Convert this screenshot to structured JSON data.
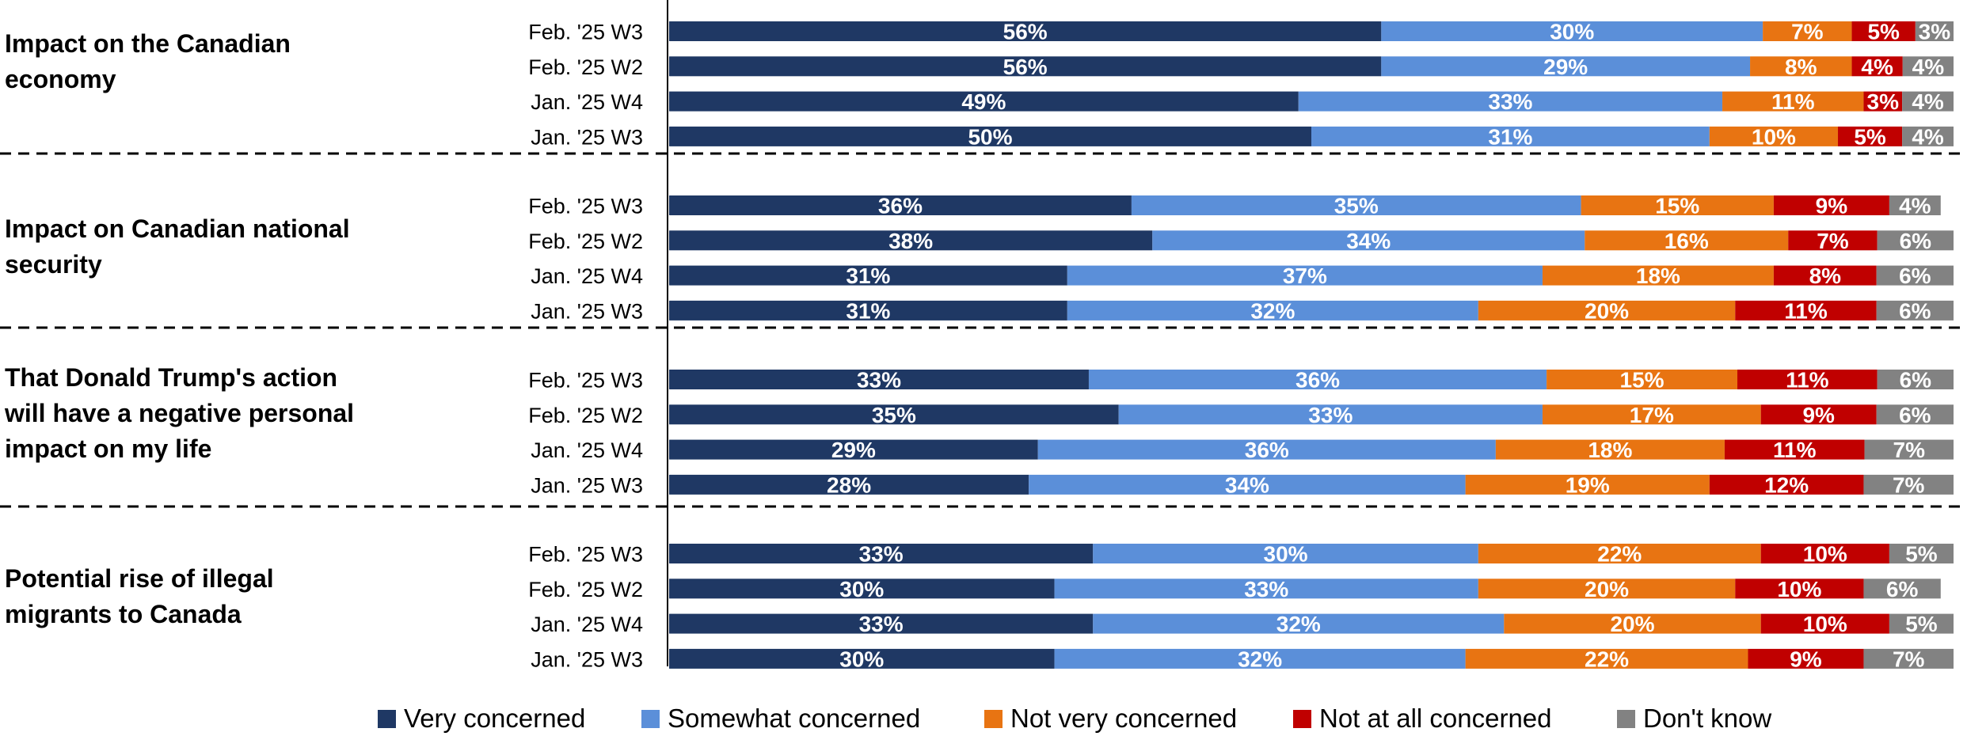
{
  "chart_data": {
    "type": "bar",
    "orientation": "horizontal",
    "stacked": true,
    "xlim": [
      0,
      100
    ],
    "grid": false,
    "legend_position": "bottom",
    "series": [
      {
        "name": "Very concerned",
        "color": "#1F3864"
      },
      {
        "name": "Somewhat concerned",
        "color": "#5B8FD9"
      },
      {
        "name": "Not very concerned",
        "color": "#E87412"
      },
      {
        "name": "Not at all concerned",
        "color": "#C00000"
      },
      {
        "name": "Don't know",
        "color": "#828282"
      }
    ],
    "groups": [
      {
        "label": "Impact on the Canadian economy",
        "rows": [
          {
            "label": "Feb. '25 W3",
            "values": [
              56,
              30,
              7,
              5,
              3
            ],
            "texts": [
              "56%",
              "30%",
              "7%",
              "5%",
              "3%"
            ]
          },
          {
            "label": "Feb. '25 W2",
            "values": [
              56,
              29,
              8,
              4,
              4
            ],
            "texts": [
              "56%",
              "29%",
              "8%",
              "4%",
              "4%"
            ]
          },
          {
            "label": "Jan. '25 W4",
            "values": [
              49,
              33,
              11,
              3,
              4
            ],
            "texts": [
              "49%",
              "33%",
              "11%",
              "3%",
              "4%"
            ]
          },
          {
            "label": "Jan. '25 W3",
            "values": [
              50,
              31,
              10,
              5,
              4
            ],
            "texts": [
              "50%",
              "31%",
              "10%",
              "5%",
              "4%"
            ]
          }
        ]
      },
      {
        "label": "Impact on Canadian national security",
        "rows": [
          {
            "label": "Feb. '25 W3",
            "values": [
              36,
              35,
              15,
              9,
              4
            ],
            "texts": [
              "36%",
              "35%",
              "15%",
              "9%",
              "4%"
            ]
          },
          {
            "label": "Feb. '25 W2",
            "values": [
              38,
              34,
              16,
              7,
              6
            ],
            "texts": [
              "38%",
              "34%",
              "16%",
              "7%",
              "6%"
            ]
          },
          {
            "label": "Jan. '25 W4",
            "values": [
              31,
              37,
              18,
              8,
              6
            ],
            "texts": [
              "31%",
              "37%",
              "18%",
              "8%",
              "6%"
            ]
          },
          {
            "label": "Jan. '25 W3",
            "values": [
              31,
              32,
              20,
              11,
              6
            ],
            "texts": [
              "31%",
              "32%",
              "20%",
              "11%",
              "6%"
            ]
          }
        ]
      },
      {
        "label": "That Donald Trump's action will have a negative personal impact on my life",
        "rows": [
          {
            "label": "Feb. '25 W3",
            "values": [
              33,
              36,
              15,
              11,
              6
            ],
            "texts": [
              "33%",
              "36%",
              "15%",
              "11%",
              "6%"
            ]
          },
          {
            "label": "Feb. '25 W2",
            "values": [
              35,
              33,
              17,
              9,
              6
            ],
            "texts": [
              "35%",
              "33%",
              "17%",
              "9%",
              "6%"
            ]
          },
          {
            "label": "Jan. '25 W4",
            "values": [
              29,
              36,
              18,
              11,
              7
            ],
            "texts": [
              "29%",
              "36%",
              "18%",
              "11%",
              "7%"
            ]
          },
          {
            "label": "Jan. '25 W3",
            "values": [
              28,
              34,
              19,
              12,
              7
            ],
            "texts": [
              "28%",
              "34%",
              "19%",
              "12%",
              "7%"
            ]
          }
        ]
      },
      {
        "label": "Potential rise of illegal migrants to Canada",
        "rows": [
          {
            "label": "Feb. '25 W3",
            "values": [
              33,
              30,
              22,
              10,
              5
            ],
            "texts": [
              "33%",
              "30%",
              "22%",
              "10%",
              "5%"
            ]
          },
          {
            "label": "Feb. '25 W2",
            "values": [
              30,
              33,
              20,
              10,
              6
            ],
            "texts": [
              "30%",
              "33%",
              "20%",
              "10%",
              "6%"
            ]
          },
          {
            "label": "Jan. '25 W4",
            "values": [
              33,
              32,
              20,
              10,
              5
            ],
            "texts": [
              "33%",
              "32%",
              "20%",
              "10%",
              "5%"
            ]
          },
          {
            "label": "Jan. '25 W3",
            "values": [
              30,
              32,
              22,
              9,
              7
            ],
            "texts": [
              "30%",
              "32%",
              "22%",
              "9%",
              "7%"
            ]
          }
        ]
      }
    ]
  }
}
